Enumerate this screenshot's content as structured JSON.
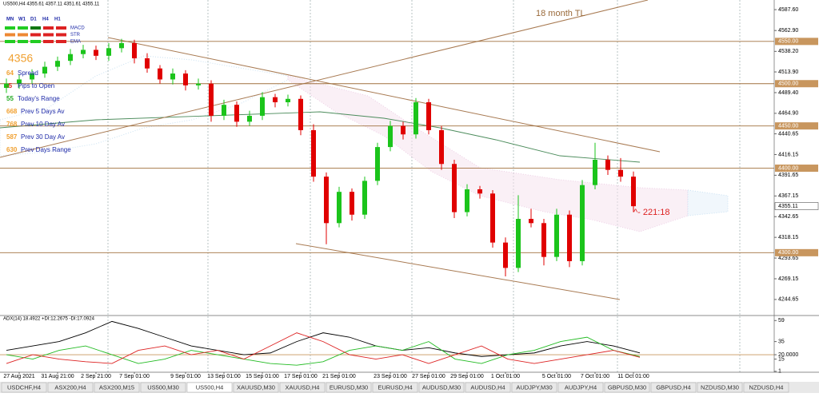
{
  "header": "US500,H4 4355.61 4357.11 4351.61 4355.11",
  "timeframes": [
    "MN",
    "W1",
    "D1",
    "H4",
    "H1"
  ],
  "signal_rows": [
    "MACD",
    "STR",
    "EMA"
  ],
  "price_badge": 4356,
  "spread": {
    "value": 64,
    "label": "Spread"
  },
  "info_rows": [
    {
      "value": -5,
      "label": "Pips to Open"
    },
    {
      "value": 55,
      "label": "Today's Range"
    },
    {
      "value": 668,
      "label": "Prev 5 Days Av"
    },
    {
      "value": 768,
      "label": "Prev 10 Day Av"
    },
    {
      "value": 587,
      "label": "Prev 30 Day Av"
    },
    {
      "value": 630,
      "label": "Prev Days Range"
    }
  ],
  "tabs": [
    "USDCHF,H4",
    "ASX200,H4",
    "ASX200,M15",
    "US500,M30",
    "US500,H4",
    "XAUUSD,M30",
    "XAUUSD,H4",
    "EURUSD,M30",
    "EURUSD,H4",
    "AUDUSD,M30",
    "AUDUSD,H4",
    "AUDJPY,M30",
    "AUDJPY,H4",
    "GBPUSD,M30",
    "GBPUSD,H4",
    "NZDUSD,M30",
    "NZDUSD,H4"
  ],
  "active_tab": "US500,H4",
  "chart_data": {
    "type": "candlestick",
    "annotations": [
      "18 month TL",
      "^- 221:18"
    ],
    "categories": [
      null,
      "27 Aug 2021",
      null,
      null,
      "31 Aug 21:00",
      null,
      null,
      "2 Sep 21:00",
      null,
      null,
      "7 Sep 01:00",
      null,
      null,
      null,
      "9 Sep 01:00",
      null,
      null,
      "13 Sep 01:00",
      null,
      null,
      "15 Sep 01:00",
      null,
      null,
      "17 Sep 01:00",
      null,
      null,
      "21 Sep 01:00",
      null,
      null,
      null,
      "23 Sep 01:00",
      null,
      null,
      "27 Sep 01:00",
      null,
      null,
      "29 Sep 01:00",
      null,
      null,
      "1 Oct 01:00",
      null,
      null,
      null,
      "5 Oct 01:00",
      null,
      null,
      "7 Oct 01:00",
      null,
      null,
      "11 Oct 01:00"
    ],
    "open": [
      4495,
      4500,
      4505,
      4512,
      4520,
      4527,
      4535,
      4540,
      4533,
      4542,
      4548,
      4530,
      4518,
      4505,
      4512,
      4498,
      4500,
      4462,
      4475,
      4455,
      4462,
      4484,
      4478,
      4482,
      4445,
      4390,
      4335,
      4372,
      4345,
      4385,
      4425,
      4450,
      4440,
      4478,
      4445,
      4405,
      4348,
      4375,
      4370,
      4312,
      4282,
      4340,
      4335,
      4295,
      4345,
      4290,
      4380,
      4410,
      4398,
      4390
    ],
    "high": [
      4506,
      4511,
      4517,
      4526,
      4532,
      4541,
      4546,
      4545,
      4548,
      4553,
      4552,
      4536,
      4522,
      4518,
      4516,
      4506,
      4504,
      4481,
      4479,
      4468,
      4490,
      4488,
      4487,
      4486,
      4452,
      4395,
      4378,
      4376,
      4390,
      4430,
      4456,
      4455,
      4483,
      4482,
      4450,
      4410,
      4381,
      4379,
      4374,
      4318,
      4368,
      4352,
      4340,
      4352,
      4350,
      4386,
      4430,
      4415,
      4412,
      4396
    ],
    "low": [
      4489,
      4494,
      4500,
      4507,
      4515,
      4522,
      4530,
      4528,
      4527,
      4537,
      4524,
      4513,
      4500,
      4499,
      4492,
      4493,
      4455,
      4457,
      4449,
      4450,
      4457,
      4472,
      4473,
      4439,
      4384,
      4310,
      4330,
      4338,
      4340,
      4380,
      4420,
      4434,
      4435,
      4440,
      4398,
      4341,
      4343,
      4364,
      4306,
      4272,
      4277,
      4330,
      4285,
      4290,
      4283,
      4285,
      4375,
      4392,
      4384,
      4348
    ],
    "close": [
      4500,
      4505,
      4512,
      4520,
      4527,
      4535,
      4540,
      4533,
      4542,
      4548,
      4530,
      4518,
      4505,
      4512,
      4498,
      4500,
      4462,
      4475,
      4455,
      4462,
      4484,
      4478,
      4482,
      4445,
      4390,
      4335,
      4372,
      4345,
      4385,
      4425,
      4450,
      4440,
      4478,
      4445,
      4405,
      4348,
      4375,
      4370,
      4312,
      4282,
      4340,
      4335,
      4295,
      4345,
      4290,
      4380,
      4410,
      4398,
      4390,
      4355
    ],
    "up_color": "#1bc41b",
    "down_color": "#e00000",
    "ylim": [
      4237,
      4599
    ],
    "yticks": [
      {
        "value": 4587.6,
        "label": "4587.60"
      },
      {
        "value": 4562.9,
        "label": "4562.90"
      },
      {
        "value": 4538.2,
        "label": "4538.20"
      },
      {
        "value": 4513.9,
        "label": "4513.90"
      },
      {
        "value": 4489.4,
        "label": "4489.40"
      },
      {
        "value": 4464.9,
        "label": "4464.90"
      },
      4440.65,
      4416.15,
      4391.65,
      4367.15,
      4342.65,
      4318.15,
      4293.65,
      4269.15,
      4244.65
    ],
    "levels": [
      {
        "value": 4550,
        "label": "4550.00"
      },
      {
        "value": 4500,
        "label": "4500.00"
      },
      {
        "value": 4450,
        "label": "4450.00"
      },
      {
        "value": 4400,
        "label": "4400.00"
      },
      {
        "value": 4300,
        "label": "4300.00"
      }
    ],
    "current_price": 4355.11,
    "indicator": {
      "title": "ADX(14) 18.4922 +DI:12.2675 -DI:17.0924",
      "ylim": [
        0,
        62
      ],
      "yticks": [
        59,
        35,
        {
          "value": 20,
          "label": "20.0000"
        },
        15,
        1
      ],
      "series": [
        {
          "color": "#000000",
          "values": [
            25,
            30,
            35,
            45,
            58,
            50,
            40,
            30,
            25,
            20,
            22,
            35,
            45,
            40,
            30,
            25,
            28,
            22,
            18,
            20,
            22,
            30,
            35,
            30,
            22
          ]
        },
        {
          "color": "#22bb22",
          "values": [
            20,
            15,
            25,
            30,
            20,
            10,
            15,
            25,
            20,
            15,
            10,
            8,
            12,
            25,
            30,
            25,
            35,
            15,
            10,
            20,
            25,
            35,
            40,
            25,
            18
          ]
        },
        {
          "color": "#dd2222",
          "values": [
            10,
            20,
            15,
            12,
            10,
            25,
            30,
            20,
            25,
            15,
            30,
            45,
            35,
            20,
            15,
            20,
            10,
            20,
            30,
            15,
            10,
            15,
            20,
            25,
            17
          ]
        }
      ]
    }
  }
}
